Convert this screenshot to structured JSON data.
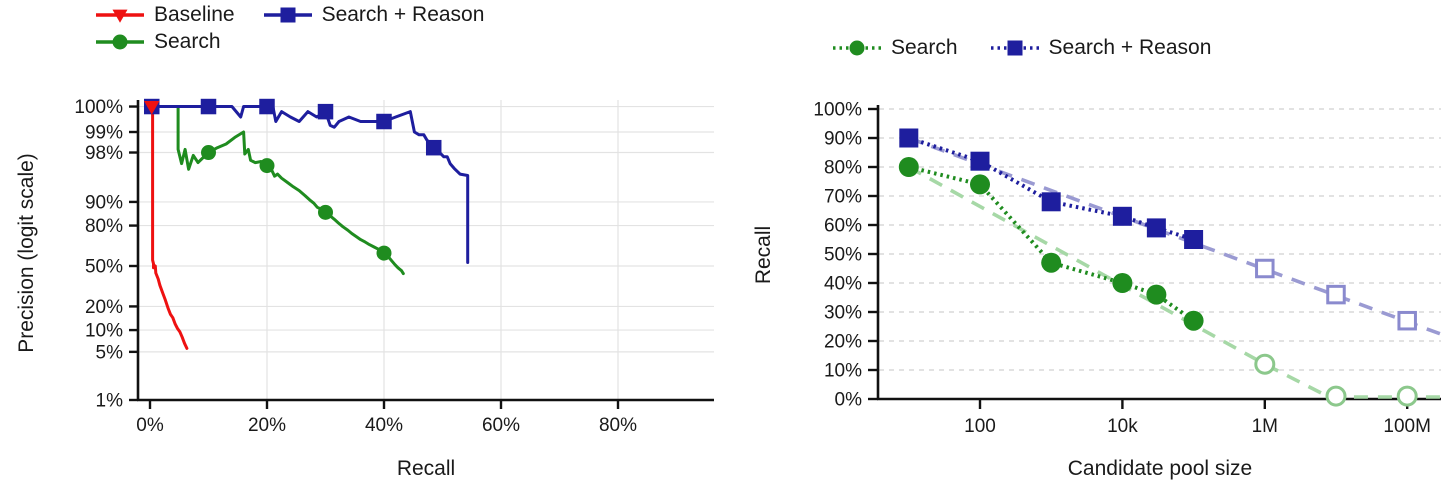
{
  "figure": {
    "background": "#ffffff",
    "text_color": "#1a1a1a"
  },
  "colors": {
    "baseline_red": "#ee1111",
    "search_green": "#1f8c1f",
    "reason_blue": "#1e1e9e",
    "trend_green": "#a6d8a6",
    "trend_blue": "#9a9ad2",
    "open_green_stroke": "#8cc88c",
    "open_blue_stroke": "#8a8ace",
    "grid_left": "#e3e3e3",
    "grid_right": "#d8d8d8",
    "spine": "#111111"
  },
  "chart_data": [
    {
      "id": "precision-recall",
      "type": "line",
      "title": "",
      "xlabel": "Recall",
      "ylabel": "Precision (logit scale)",
      "x_scale": "linear",
      "y_scale": "logit",
      "xlim": [
        0,
        96
      ],
      "ylim": [
        1,
        100
      ],
      "grid": true,
      "x_ticks": [
        {
          "value": 0,
          "label": "0%"
        },
        {
          "value": 20,
          "label": "20%"
        },
        {
          "value": 40,
          "label": "40%"
        },
        {
          "value": 60,
          "label": "60%"
        },
        {
          "value": 80,
          "label": "80%"
        }
      ],
      "y_ticks": [
        {
          "value": 100,
          "label": "100%"
        },
        {
          "value": 99,
          "label": "99%"
        },
        {
          "value": 98,
          "label": "98%"
        },
        {
          "value": 90,
          "label": "90%"
        },
        {
          "value": 80,
          "label": "80%"
        },
        {
          "value": 50,
          "label": "50%"
        },
        {
          "value": 20,
          "label": "20%"
        },
        {
          "value": 10,
          "label": "10%"
        },
        {
          "value": 5,
          "label": "5%"
        },
        {
          "value": 1,
          "label": "1%"
        }
      ],
      "legend_position": "top-left",
      "series": [
        {
          "name": "Baseline",
          "color": "#ee1111",
          "marker": "triangle-down",
          "line_style": "solid",
          "points": [
            [
              0.2,
              100
            ],
            [
              0.45,
              100
            ],
            [
              0.45,
              55
            ],
            [
              0.6,
              52
            ],
            [
              0.6,
              48.5
            ],
            [
              0.9,
              50
            ],
            [
              1.0,
              44
            ],
            [
              1.4,
              39
            ],
            [
              1.7,
              34
            ],
            [
              2.2,
              28
            ],
            [
              2.6,
              24
            ],
            [
              3.1,
              19
            ],
            [
              3.5,
              16
            ],
            [
              3.9,
              14.5
            ],
            [
              4.3,
              12
            ],
            [
              4.7,
              10.5
            ],
            [
              5.1,
              9.5
            ],
            [
              5.5,
              8
            ],
            [
              5.9,
              6.6
            ],
            [
              6.3,
              5.6
            ]
          ],
          "marker_points": [
            [
              0.3,
              100
            ]
          ]
        },
        {
          "name": "Search",
          "color": "#1f8c1f",
          "marker": "circle",
          "line_style": "solid",
          "points": [
            [
              0.2,
              100
            ],
            [
              4.8,
              100
            ],
            [
              4.8,
              98.2
            ],
            [
              5.4,
              97.1
            ],
            [
              6.0,
              98.2
            ],
            [
              6.6,
              96.5
            ],
            [
              7.4,
              97.8
            ],
            [
              8.2,
              97.2
            ],
            [
              9.0,
              97.6
            ],
            [
              10,
              98.0
            ],
            [
              11.5,
              98.3
            ],
            [
              13,
              98.5
            ],
            [
              14.5,
              98.8
            ],
            [
              16,
              99.0
            ],
            [
              16.2,
              97.9
            ],
            [
              16.8,
              98.2
            ],
            [
              17.2,
              97.4
            ],
            [
              18,
              97.2
            ],
            [
              19,
              97.3
            ],
            [
              20,
              96.9
            ],
            [
              20.8,
              96.4
            ],
            [
              21.3,
              95.6
            ],
            [
              21.8,
              95.9
            ],
            [
              22.5,
              95.3
            ],
            [
              23.5,
              94.6
            ],
            [
              24.5,
              93.8
            ],
            [
              25.5,
              93.0
            ],
            [
              26.5,
              91.8
            ],
            [
              27.3,
              90.6
            ],
            [
              28,
              89.6
            ],
            [
              28.6,
              88.2
            ],
            [
              29.2,
              87.6
            ],
            [
              30,
              86.3
            ],
            [
              30.8,
              84.8
            ],
            [
              31.5,
              83.2
            ],
            [
              32.2,
              81.4
            ],
            [
              33,
              79.3
            ],
            [
              33.8,
              77.4
            ],
            [
              34.5,
              75.3
            ],
            [
              35.3,
              73.2
            ],
            [
              36,
              71.2
            ],
            [
              36.8,
              69.4
            ],
            [
              37.5,
              67.6
            ],
            [
              38.3,
              65.7
            ],
            [
              39.2,
              63.6
            ],
            [
              40,
              60.9
            ],
            [
              40.8,
              57.5
            ],
            [
              41.3,
              54.5
            ],
            [
              41.9,
              51.0
            ],
            [
              42.4,
              48.5
            ],
            [
              43.0,
              46.0
            ],
            [
              43.3,
              43.5
            ]
          ],
          "marker_points": [
            [
              10,
              98.0
            ],
            [
              20,
              96.9
            ],
            [
              30,
              86.3
            ],
            [
              40,
              60.9
            ]
          ]
        },
        {
          "name": "Search + Reason",
          "color": "#1e1e9e",
          "marker": "square",
          "line_style": "solid",
          "points": [
            [
              0.2,
              100
            ],
            [
              14,
              100
            ],
            [
              15.5,
              99.4
            ],
            [
              16,
              100
            ],
            [
              20,
              100
            ],
            [
              21,
              99.6
            ],
            [
              21.5,
              99.3
            ],
            [
              22.5,
              99.5
            ],
            [
              24,
              99.4
            ],
            [
              25.5,
              99.3
            ],
            [
              27,
              99.5
            ],
            [
              28.5,
              99.4
            ],
            [
              30,
              99.5
            ],
            [
              30.8,
              99.2
            ],
            [
              31.5,
              99.15
            ],
            [
              32.3,
              99.3
            ],
            [
              34,
              99.4
            ],
            [
              36,
              99.3
            ],
            [
              38,
              99.3
            ],
            [
              40,
              99.3
            ],
            [
              42,
              99.4
            ],
            [
              44.5,
              99.5
            ],
            [
              45.2,
              99.0
            ],
            [
              46,
              98.9
            ],
            [
              46.8,
              98.9
            ],
            [
              47.3,
              98.7
            ],
            [
              48.5,
              98.3
            ],
            [
              49.5,
              98.0
            ],
            [
              50.2,
              97.7
            ],
            [
              50.8,
              97.7
            ],
            [
              51.3,
              97.1
            ],
            [
              52,
              96.6
            ],
            [
              52.6,
              96.2
            ],
            [
              53,
              95.9
            ],
            [
              54.3,
              95.7
            ],
            [
              54.3,
              53
            ]
          ],
          "marker_points": [
            [
              0.3,
              100
            ],
            [
              10,
              100
            ],
            [
              20,
              100
            ],
            [
              30,
              99.5
            ],
            [
              40,
              99.3
            ],
            [
              48.5,
              98.3
            ]
          ]
        }
      ]
    },
    {
      "id": "recall-vs-pool-size",
      "type": "line",
      "title": "",
      "xlabel": "Candidate pool size",
      "ylabel": "Recall",
      "x_scale": "log",
      "y_scale": "linear",
      "ylim": [
        0,
        100
      ],
      "grid": "horizontal-dashed",
      "x_ticks": [
        {
          "value": 100,
          "label": "100"
        },
        {
          "value": 10000,
          "label": "10k"
        },
        {
          "value": 1000000,
          "label": "1M"
        },
        {
          "value": 100000000,
          "label": "100M"
        }
      ],
      "y_ticks": [
        {
          "value": 0,
          "label": "0%"
        },
        {
          "value": 10,
          "label": "10%"
        },
        {
          "value": 20,
          "label": "20%"
        },
        {
          "value": 30,
          "label": "30%"
        },
        {
          "value": 40,
          "label": "40%"
        },
        {
          "value": 50,
          "label": "50%"
        },
        {
          "value": 60,
          "label": "60%"
        },
        {
          "value": 70,
          "label": "70%"
        },
        {
          "value": 80,
          "label": "80%"
        },
        {
          "value": 90,
          "label": "90%"
        },
        {
          "value": 100,
          "label": "100%"
        }
      ],
      "legend_position": "top-center",
      "series": [
        {
          "name": "Search",
          "color": "#1f8c1f",
          "marker": "circle",
          "line_style": "dotted",
          "solid_points": [
            [
              10,
              80
            ],
            [
              100,
              74
            ],
            [
              1000,
              47
            ],
            [
              10000,
              40
            ],
            [
              30000,
              36
            ],
            [
              100000,
              27
            ]
          ],
          "open_points": [
            [
              1000000,
              12
            ],
            [
              10000000,
              1
            ],
            [
              100000000,
              1
            ]
          ],
          "trend_points": [
            [
              10,
              80
            ],
            [
              1000000,
              12
            ],
            [
              8000000,
              0.7
            ],
            [
              290000000,
              0.7
            ]
          ],
          "trend_color": "#a6d8a6",
          "open_stroke": "#8cc88c"
        },
        {
          "name": "Search + Reason",
          "color": "#1e1e9e",
          "marker": "square",
          "line_style": "dotted",
          "solid_points": [
            [
              10,
              90
            ],
            [
              100,
              82
            ],
            [
              1000,
              68
            ],
            [
              10000,
              63
            ],
            [
              30000,
              59
            ],
            [
              100000,
              55
            ]
          ],
          "open_points": [
            [
              1000000,
              45
            ],
            [
              10000000,
              36
            ],
            [
              100000000,
              27
            ]
          ],
          "trend_points": [
            [
              10,
              90
            ],
            [
              290000000,
              22.5
            ]
          ],
          "trend_color": "#9a9ad2",
          "open_stroke": "#8a8ace"
        }
      ]
    }
  ]
}
